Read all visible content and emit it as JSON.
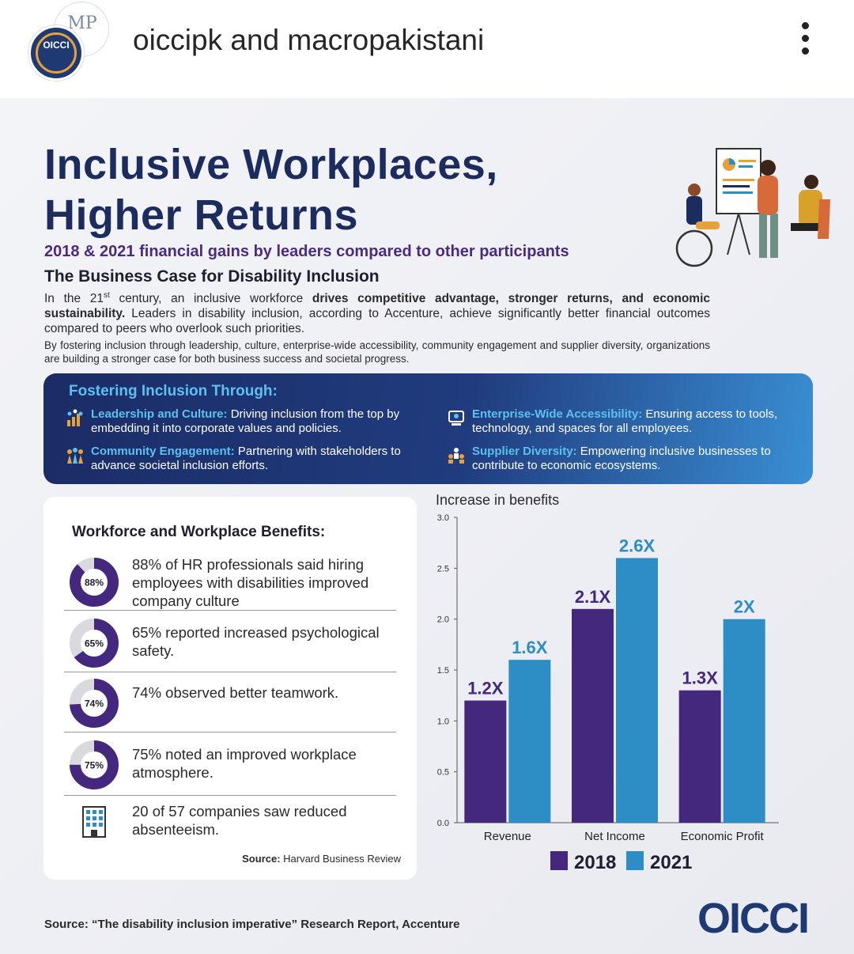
{
  "header": {
    "username_a": "oiccipk",
    "username_join": "and",
    "username_b": "macropakistani",
    "avatar_main_label": "OICCI",
    "avatar_sec_label": "MP"
  },
  "post": {
    "title_line1": "Inclusive Workplaces,",
    "title_line2": "Higher Returns",
    "subtitle": "2018 & 2021 financial gains by leaders compared to other participants",
    "section_heading": "The Business Case for Disability Inclusion",
    "para1_a": "In the 21",
    "para1_sup": "st",
    "para1_b": " century, an inclusive workforce ",
    "para1_bold": "drives competitive advantage, stronger returns, and economic sustainability.",
    "para1_c": " Leaders in disability inclusion, according to Accenture, achieve significantly better financial outcomes compared to peers who overlook such priorities.",
    "para2": "By fostering inclusion through leadership, culture, enterprise-wide accessibility, community engagement and supplier diversity, organizations are building a stronger case for both business success and societal progress.",
    "fostering": {
      "title": "Fostering Inclusion Through:",
      "items": [
        {
          "title": "Leadership and Culture:",
          "text": " Driving inclusion from the top by embedding it into corporate values and policies.",
          "icon": "leadership-chart-icon"
        },
        {
          "title": "Enterprise-Wide Accessibility:",
          "text": " Ensuring access to tools, technology, and spaces for all employees.",
          "icon": "accessibility-computer-icon"
        },
        {
          "title": "Community Engagement:",
          "text": " Partnering with stakeholders to advance societal inclusion efforts.",
          "icon": "community-people-icon"
        },
        {
          "title": "Supplier Diversity:",
          "text": " Empowering inclusive businesses to contribute to economic ecosystems.",
          "icon": "supplier-people-icon"
        }
      ]
    },
    "benefits": {
      "title": "Workforce and Workplace Benefits:",
      "items": [
        {
          "pct": 88,
          "label": "88%",
          "text": "88% of HR professionals said hiring employees with disabilities improved company culture"
        },
        {
          "pct": 65,
          "label": "65%",
          "text": "65% reported increased psychological safety."
        },
        {
          "pct": 74,
          "label": "74%",
          "text": "74% observed better teamwork."
        },
        {
          "pct": 75,
          "label": "75%",
          "text": "75% noted an improved workplace atmosphere."
        },
        {
          "label": "",
          "text": "20 of 57 companies saw reduced absenteeism.",
          "icon": "office-building-icon"
        }
      ],
      "source_label": "Source:",
      "source_text": " Harvard Business Review"
    },
    "footer_source": "Source: “The disability inclusion imperative” Research Report, Accenture",
    "brand": "OICCI"
  },
  "colors": {
    "series_2018": "#44287d",
    "series_2021": "#2d8ec6",
    "navy": "#1d2c5e",
    "accent_blue": "#5cc0f0"
  },
  "chart_data": {
    "type": "bar",
    "title": "Increase in benefits",
    "categories": [
      "Revenue",
      "Net Income",
      "Economic Profit"
    ],
    "series": [
      {
        "name": "2018",
        "values": [
          1.2,
          2.1,
          1.3
        ],
        "labels": [
          "1.2X",
          "2.1X",
          "1.3X"
        ]
      },
      {
        "name": "2021",
        "values": [
          1.6,
          2.6,
          2.0
        ],
        "labels": [
          "1.6X",
          "2.6X",
          "2X"
        ]
      }
    ],
    "ylim": [
      0,
      3.0
    ],
    "yticks": [
      "0.0",
      "0.5",
      "1.0",
      "1.5",
      "2.0",
      "2.5",
      "3.0"
    ],
    "legend": "bottom",
    "grid": false
  }
}
